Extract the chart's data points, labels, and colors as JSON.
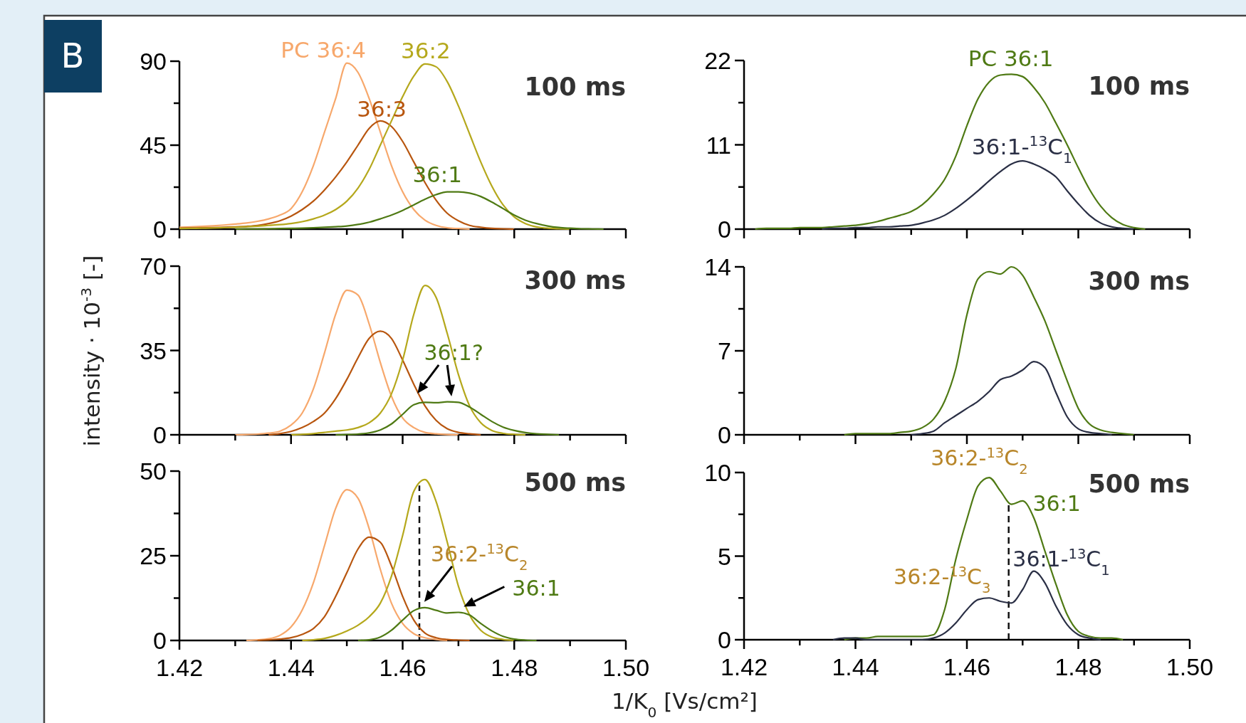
{
  "chart_data": [
    {
      "type": "line",
      "title": "100 ms",
      "annotations": [
        "B"
      ],
      "xlim": [
        1.42,
        1.5
      ],
      "xticks": [
        1.42,
        {
          "value": 1.43,
          "label": null
        },
        1.44,
        {
          "value": 1.45,
          "label": null
        },
        1.46,
        {
          "value": 1.47,
          "label": null
        },
        1.48,
        {
          "value": 1.49,
          "label": null
        },
        1.5
      ],
      "ylim": [
        0,
        90
      ],
      "yticks": [
        0,
        {
          "value": 22.5,
          "label": null
        },
        45,
        {
          "value": 67.5,
          "label": null
        },
        90
      ],
      "tick_labels": "y",
      "series": [
        {
          "name": "PC 36:4",
          "color": "#f7a86c",
          "x": [
            1.42,
            1.422,
            1.424,
            1.426,
            1.428,
            1.43,
            1.432,
            1.434,
            1.436,
            1.438,
            1.44,
            1.442,
            1.444,
            1.446,
            1.448,
            1.45,
            1.452,
            1.454,
            1.456,
            1.458,
            1.46,
            1.462,
            1.464,
            1.466,
            1.468,
            1.47,
            1.472
          ],
          "values": [
            1,
            1.2,
            1.5,
            1.8,
            2.2,
            2.7,
            3.3,
            4.2,
            5.5,
            7.5,
            11,
            20,
            34,
            52,
            70,
            89,
            84,
            70,
            52,
            34,
            20,
            10.5,
            4.8,
            2,
            0.7,
            0.3,
            0
          ]
        },
        {
          "name": "36:3",
          "color": "#b8560f",
          "x": [
            1.42,
            1.422,
            1.424,
            1.426,
            1.428,
            1.43,
            1.432,
            1.434,
            1.436,
            1.438,
            1.44,
            1.442,
            1.444,
            1.446,
            1.448,
            1.45,
            1.452,
            1.454,
            1.456,
            1.458,
            1.46,
            1.462,
            1.464,
            1.466,
            1.468,
            1.47,
            1.472,
            1.474,
            1.476,
            1.478,
            1.48
          ],
          "values": [
            0.5,
            0.6,
            0.7,
            0.8,
            1,
            1.2,
            1.5,
            2,
            3,
            4.5,
            7,
            10.5,
            15,
            21,
            28,
            36,
            45,
            54,
            58,
            55,
            47,
            36,
            25,
            15.5,
            8.5,
            4.5,
            2,
            1,
            0.4,
            0.2,
            0
          ]
        },
        {
          "name": "36:2",
          "color": "#b5a81c",
          "x": [
            1.42,
            1.422,
            1.424,
            1.426,
            1.428,
            1.43,
            1.432,
            1.434,
            1.436,
            1.438,
            1.44,
            1.442,
            1.444,
            1.446,
            1.448,
            1.45,
            1.452,
            1.454,
            1.456,
            1.458,
            1.46,
            1.462,
            1.464,
            1.466,
            1.468,
            1.47,
            1.472,
            1.474,
            1.476,
            1.478,
            1.48,
            1.482,
            1.484,
            1.486,
            1.488,
            1.49
          ],
          "values": [
            0.3,
            0.4,
            0.5,
            0.6,
            0.8,
            1,
            1.3,
            1.6,
            2,
            2.4,
            3,
            4,
            5.5,
            7.5,
            10.5,
            15,
            22,
            32,
            45,
            58,
            71,
            82,
            88.5,
            87,
            79,
            66,
            51,
            36,
            23,
            13,
            6.5,
            3,
            1.2,
            0.5,
            0.2,
            0
          ]
        },
        {
          "name": "36:1",
          "color": "#4f7a14",
          "x": [
            1.43,
            1.432,
            1.434,
            1.436,
            1.438,
            1.44,
            1.442,
            1.444,
            1.446,
            1.448,
            1.45,
            1.452,
            1.454,
            1.456,
            1.458,
            1.46,
            1.462,
            1.464,
            1.466,
            1.468,
            1.47,
            1.472,
            1.474,
            1.476,
            1.478,
            1.48,
            1.482,
            1.484,
            1.486,
            1.488,
            1.49,
            1.492,
            1.494,
            1.496
          ],
          "values": [
            0,
            0.1,
            0.1,
            0.2,
            0.3,
            0.4,
            0.5,
            0.7,
            1,
            1.3,
            1.7,
            2.5,
            3.7,
            5.5,
            7.5,
            10,
            13,
            16,
            18.5,
            20,
            20,
            19.3,
            17.5,
            14.5,
            11,
            7.5,
            4.8,
            3,
            1.7,
            0.9,
            0.5,
            0.2,
            0.1,
            0
          ]
        }
      ]
    },
    {
      "type": "line",
      "title": "100 ms",
      "xlim": [
        1.42,
        1.5
      ],
      "xticks": [
        1.42,
        {
          "value": 1.43,
          "label": null
        },
        1.44,
        {
          "value": 1.45,
          "label": null
        },
        1.46,
        {
          "value": 1.47,
          "label": null
        },
        1.48,
        {
          "value": 1.49,
          "label": null
        },
        1.5
      ],
      "ylim": [
        0,
        22
      ],
      "yticks": [
        0,
        {
          "value": 5.5,
          "label": null
        },
        11,
        {
          "value": 16.5,
          "label": null
        },
        22
      ],
      "tick_labels": "y",
      "series": [
        {
          "name": "PC 36:1",
          "color": "#4f7a14",
          "x": [
            1.422,
            1.424,
            1.426,
            1.428,
            1.43,
            1.432,
            1.434,
            1.436,
            1.438,
            1.44,
            1.442,
            1.444,
            1.446,
            1.448,
            1.45,
            1.452,
            1.454,
            1.456,
            1.458,
            1.46,
            1.462,
            1.464,
            1.466,
            1.468,
            1.47,
            1.472,
            1.474,
            1.476,
            1.478,
            1.48,
            1.482,
            1.484,
            1.486,
            1.488,
            1.49,
            1.492
          ],
          "values": [
            0,
            0.1,
            0.1,
            0.1,
            0.2,
            0.2,
            0.2,
            0.3,
            0.4,
            0.5,
            0.7,
            1,
            1.4,
            1.8,
            2.3,
            3.2,
            4.6,
            6.5,
            9.5,
            13.5,
            17,
            19.2,
            20.1,
            20.2,
            19.9,
            18.5,
            16.5,
            13.8,
            11,
            8,
            5.2,
            3,
            1.5,
            0.6,
            0.2,
            0
          ]
        },
        {
          "name": "36:1-$^{13}$C$_{1}$",
          "color": "#2a2f45",
          "x": [
            1.434,
            1.436,
            1.438,
            1.44,
            1.442,
            1.444,
            1.446,
            1.448,
            1.45,
            1.452,
            1.454,
            1.456,
            1.458,
            1.46,
            1.462,
            1.464,
            1.466,
            1.468,
            1.47,
            1.472,
            1.474,
            1.476,
            1.478,
            1.48,
            1.482,
            1.484,
            1.486,
            1.488,
            1.49
          ],
          "values": [
            0,
            0.1,
            0.1,
            0.2,
            0.2,
            0.3,
            0.3,
            0.4,
            0.5,
            0.8,
            1.2,
            1.8,
            2.7,
            3.8,
            5,
            6.3,
            7.5,
            8.5,
            8.9,
            8.5,
            7.8,
            6.8,
            5,
            3.3,
            1.8,
            0.8,
            0.3,
            0.1,
            0
          ]
        }
      ]
    },
    {
      "type": "line",
      "title": "300 ms",
      "ylabel": "intensity · 10$^{-3}$ [-]",
      "annotations": [
        {
          "text": "36:1?",
          "x": 1.4657,
          "y": 13.6
        }
      ],
      "xlim": [
        1.42,
        1.5
      ],
      "xticks": [
        1.42,
        {
          "value": 1.43,
          "label": null
        },
        1.44,
        {
          "value": 1.45,
          "label": null
        },
        1.46,
        {
          "value": 1.47,
          "label": null
        },
        1.48,
        {
          "value": 1.49,
          "label": null
        },
        1.5
      ],
      "ylim": [
        0,
        70
      ],
      "yticks": [
        0,
        {
          "value": 17.5,
          "label": null
        },
        35,
        {
          "value": 52.5,
          "label": null
        },
        70
      ],
      "tick_labels": "y",
      "series": [
        {
          "color": "#f7a86c",
          "x": [
            1.43,
            1.432,
            1.434,
            1.436,
            1.438,
            1.44,
            1.442,
            1.444,
            1.446,
            1.448,
            1.45,
            1.452,
            1.454,
            1.456,
            1.458,
            1.46,
            1.462,
            1.464,
            1.466,
            1.468,
            1.47
          ],
          "values": [
            0,
            0.1,
            0.3,
            0.7,
            1.5,
            4,
            9,
            19,
            34,
            50,
            60,
            58,
            46,
            30,
            16,
            7,
            3,
            1,
            0.4,
            0.1,
            0
          ]
        },
        {
          "color": "#b8560f",
          "x": [
            1.436,
            1.438,
            1.44,
            1.442,
            1.444,
            1.446,
            1.448,
            1.45,
            1.452,
            1.454,
            1.456,
            1.458,
            1.46,
            1.462,
            1.464,
            1.466,
            1.468,
            1.47,
            1.472,
            1.474
          ],
          "values": [
            0,
            0.5,
            1.4,
            3,
            5.5,
            9,
            15,
            23,
            32,
            40,
            43,
            40,
            31,
            21,
            12,
            6,
            2.5,
            1,
            0.4,
            0
          ]
        },
        {
          "color": "#b5a81c",
          "x": [
            1.44,
            1.442,
            1.444,
            1.446,
            1.448,
            1.45,
            1.452,
            1.454,
            1.456,
            1.458,
            1.46,
            1.462,
            1.464,
            1.466,
            1.468,
            1.47,
            1.472,
            1.474,
            1.476,
            1.478,
            1.48,
            1.482
          ],
          "values": [
            0,
            0.2,
            0.5,
            1,
            1.5,
            2,
            3,
            5,
            9,
            17,
            31,
            50,
            62,
            57,
            42,
            25,
            12,
            5,
            1.8,
            0.6,
            0.2,
            0
          ]
        },
        {
          "color": "#4f7a14",
          "x": [
            1.448,
            1.45,
            1.452,
            1.454,
            1.456,
            1.458,
            1.46,
            1.462,
            1.464,
            1.466,
            1.468,
            1.47,
            1.472,
            1.474,
            1.476,
            1.478,
            1.48,
            1.482,
            1.484,
            1.486,
            1.488
          ],
          "values": [
            0,
            0.1,
            0.3,
            0.8,
            2,
            4.5,
            8.5,
            12.5,
            13.5,
            13.3,
            13.7,
            13.5,
            11.5,
            8.5,
            5.5,
            3.2,
            1.8,
            0.9,
            0.4,
            0.2,
            0
          ]
        }
      ]
    },
    {
      "type": "line",
      "title": "300 ms",
      "xlim": [
        1.42,
        1.5
      ],
      "xticks": [
        1.42,
        {
          "value": 1.43,
          "label": null
        },
        1.44,
        {
          "value": 1.45,
          "label": null
        },
        1.46,
        {
          "value": 1.47,
          "label": null
        },
        1.48,
        {
          "value": 1.49,
          "label": null
        },
        1.5
      ],
      "ylim": [
        0,
        14
      ],
      "yticks": [
        0,
        {
          "value": 3.5,
          "label": null
        },
        7,
        {
          "value": 10.5,
          "label": null
        },
        14
      ],
      "tick_labels": "y",
      "series": [
        {
          "color": "#4f7a14",
          "x": [
            1.438,
            1.44,
            1.442,
            1.444,
            1.446,
            1.448,
            1.45,
            1.452,
            1.454,
            1.456,
            1.458,
            1.46,
            1.462,
            1.464,
            1.466,
            1.468,
            1.47,
            1.472,
            1.474,
            1.476,
            1.478,
            1.48,
            1.482,
            1.484,
            1.486,
            1.488,
            1.49
          ],
          "values": [
            0,
            0.1,
            0.1,
            0.1,
            0.1,
            0.2,
            0.3,
            0.6,
            1.3,
            2.8,
            5.5,
            10,
            13,
            13.6,
            13.4,
            14,
            13.3,
            11.5,
            9.5,
            7,
            4.5,
            2.2,
            0.9,
            0.4,
            0.2,
            0.1,
            0
          ]
        },
        {
          "color": "#2a2f45",
          "x": [
            1.45,
            1.452,
            1.454,
            1.456,
            1.458,
            1.46,
            1.462,
            1.464,
            1.466,
            1.468,
            1.47,
            1.472,
            1.474,
            1.476,
            1.478,
            1.48,
            1.482,
            1.484,
            1.486
          ],
          "values": [
            0,
            0.1,
            0.3,
            1,
            1.6,
            2.2,
            2.8,
            3.6,
            4.6,
            4.9,
            5.4,
            6.1,
            5.6,
            3.5,
            1.5,
            0.5,
            0.2,
            0.1,
            0
          ]
        }
      ]
    },
    {
      "type": "line",
      "title": "500 ms",
      "xlabel": "1/K$_{0}$ [Vs/cm²]",
      "annotations": [
        {
          "text": "36:2-$^{13}$C$_{2}$",
          "x": 1.4635,
          "y": 9.7
        },
        {
          "text": "36:1",
          "x": 1.4707,
          "y": 8.3
        }
      ],
      "ref_lines": [
        {
          "axis": "x",
          "value": 1.463,
          "color": "#111111",
          "line_style": "dashed"
        }
      ],
      "xlim": [
        1.42,
        1.5
      ],
      "xticks": [
        1.42,
        {
          "value": 1.43,
          "label": null
        },
        1.44,
        {
          "value": 1.45,
          "label": null
        },
        1.46,
        {
          "value": 1.47,
          "label": null
        },
        1.48,
        {
          "value": 1.49,
          "label": null
        },
        {
          "value": 1.5,
          "label": "1.50"
        }
      ],
      "ylim": [
        0,
        50
      ],
      "yticks": [
        0,
        {
          "value": 12.5,
          "label": null
        },
        25,
        {
          "value": 37.5,
          "label": null
        },
        50
      ],
      "series": [
        {
          "color": "#f7a86c",
          "x": [
            1.432,
            1.434,
            1.436,
            1.438,
            1.44,
            1.442,
            1.444,
            1.446,
            1.448,
            1.45,
            1.452,
            1.454,
            1.456,
            1.458,
            1.46,
            1.462,
            1.464,
            1.466,
            1.468
          ],
          "values": [
            0,
            0.2,
            0.5,
            1.5,
            4,
            9,
            17,
            28,
            39,
            44.5,
            42,
            33,
            21,
            11,
            5,
            2,
            0.8,
            0.3,
            0
          ]
        },
        {
          "color": "#b8560f",
          "x": [
            1.434,
            1.436,
            1.438,
            1.44,
            1.442,
            1.444,
            1.446,
            1.448,
            1.45,
            1.452,
            1.454,
            1.456,
            1.458,
            1.46,
            1.462,
            1.464,
            1.466,
            1.468,
            1.47,
            1.472
          ],
          "values": [
            0,
            0.2,
            0.4,
            0.8,
            1.8,
            3.5,
            7,
            13,
            20,
            27,
            30.5,
            29,
            22,
            13,
            6,
            2.2,
            0.8,
            0.3,
            0.1,
            0
          ]
        },
        {
          "color": "#b5a81c",
          "x": [
            1.442,
            1.444,
            1.446,
            1.448,
            1.45,
            1.452,
            1.454,
            1.456,
            1.458,
            1.46,
            1.462,
            1.464,
            1.466,
            1.468,
            1.47,
            1.472,
            1.474,
            1.476,
            1.478,
            1.48
          ],
          "values": [
            0,
            0.2,
            0.6,
            1.5,
            2.8,
            4.5,
            7,
            11,
            19,
            31,
            44,
            47.5,
            41,
            29,
            16,
            7.5,
            3,
            1,
            0.3,
            0
          ]
        },
        {
          "color": "#4f7a14",
          "x": [
            1.452,
            1.454,
            1.456,
            1.458,
            1.46,
            1.462,
            1.464,
            1.466,
            1.468,
            1.47,
            1.472,
            1.474,
            1.476,
            1.478,
            1.48,
            1.482,
            1.484
          ],
          "values": [
            0,
            0.2,
            1,
            3,
            6,
            8.8,
            9.7,
            8.9,
            8.1,
            8.3,
            7.5,
            5,
            2.8,
            1.2,
            0.4,
            0.1,
            0
          ]
        }
      ]
    },
    {
      "type": "line",
      "title": "500 ms",
      "annotations": [
        {
          "text": "36:2-$^{13}$C$_{2}$",
          "x": 1.4635,
          "y": 9.76
        },
        {
          "text": "36:1",
          "x": 1.4699,
          "y": 8.3
        },
        {
          "text": "36:2-$^{13}$C$_{3}$",
          "x": 1.463,
          "y": 2.5
        },
        {
          "text": "36:1-$^{13}$C$_{1}$",
          "x": 1.4718,
          "y": 4.1
        }
      ],
      "ref_lines": [
        {
          "axis": "x",
          "value": 1.4675,
          "color": "#111111",
          "line_style": "dashed"
        }
      ],
      "xlim": [
        1.42,
        1.5
      ],
      "xticks": [
        1.42,
        {
          "value": 1.43,
          "label": null
        },
        1.44,
        {
          "value": 1.45,
          "label": null
        },
        1.46,
        {
          "value": 1.47,
          "label": null
        },
        1.48,
        {
          "value": 1.49,
          "label": null
        },
        {
          "value": 1.5,
          "label": "1.50"
        }
      ],
      "ylim": [
        0,
        10
      ],
      "yticks": [
        0,
        {
          "value": 2.5,
          "label": null
        },
        5,
        {
          "value": 7.5,
          "label": null
        },
        10
      ],
      "series": [
        {
          "color": "#4f7a14",
          "x": [
            1.438,
            1.44,
            1.442,
            1.444,
            1.446,
            1.448,
            1.45,
            1.452,
            1.454,
            1.456,
            1.458,
            1.46,
            1.462,
            1.464,
            1.466,
            1.468,
            1.47,
            1.472,
            1.474,
            1.476,
            1.478,
            1.48,
            1.482,
            1.484,
            1.486,
            1.488
          ],
          "values": [
            0,
            0.1,
            0.1,
            0.2,
            0.2,
            0.2,
            0.2,
            0.2,
            0.3,
            1.8,
            4.8,
            7.2,
            9.2,
            9.7,
            8.9,
            8.1,
            8.3,
            7.3,
            5.3,
            3.3,
            1.5,
            0.5,
            0.2,
            0.1,
            0.1,
            0
          ]
        },
        {
          "color": "#2a2f45",
          "x": [
            1.436,
            1.438,
            1.44,
            1.442,
            1.444,
            1.446,
            1.448,
            1.45,
            1.452,
            1.454,
            1.456,
            1.458,
            1.46,
            1.462,
            1.464,
            1.466,
            1.468,
            1.47,
            1.472,
            1.474,
            1.476,
            1.478,
            1.48,
            1.482,
            1.484
          ],
          "values": [
            0,
            0.1,
            0.1,
            0,
            0,
            0,
            0,
            0,
            0,
            0.1,
            0.4,
            1,
            1.8,
            2.4,
            2.5,
            2.3,
            2.2,
            3,
            4.1,
            3.4,
            2,
            0.9,
            0.3,
            0.1,
            0
          ]
        }
      ]
    }
  ]
}
